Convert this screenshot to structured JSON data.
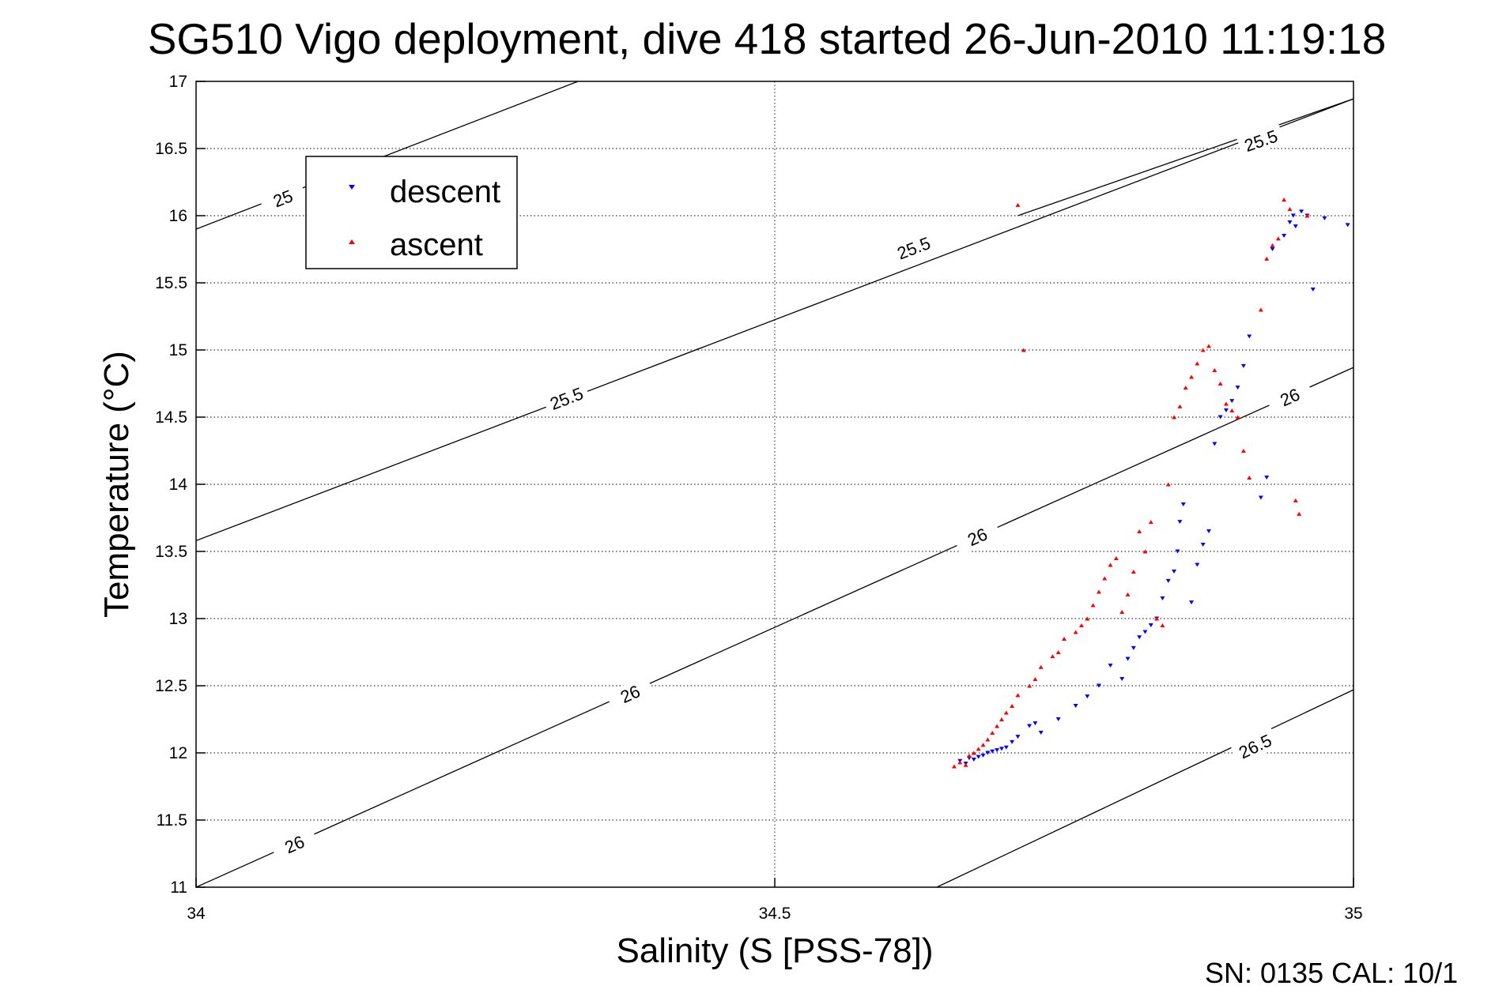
{
  "chart_data": {
    "type": "scatter",
    "title": "SG510 Vigo deployment, dive 418 started 26-Jun-2010 11:19:18",
    "xlabel": "Salinity (S [PSS-78])",
    "ylabel": "Temperature (°C)",
    "xlim": [
      34,
      35
    ],
    "ylim": [
      11,
      17
    ],
    "x_ticks": [
      "34",
      "34.5",
      "35"
    ],
    "y_ticks": [
      "11",
      "11.5",
      "12",
      "12.5",
      "13",
      "13.5",
      "14",
      "14.5",
      "15",
      "15.5",
      "16",
      "16.5",
      "17"
    ],
    "grid": true,
    "legend_position": "top-left",
    "footer_text": "SN: 0135  CAL: 10/1",
    "contours": [
      {
        "label": "25",
        "points": [
          [
            34.0,
            15.9
          ],
          [
            34.33,
            17.0
          ]
        ],
        "labels_at": [
          [
            34.075,
            16.13
          ]
        ]
      },
      {
        "label": "25.5",
        "points": [
          [
            34.0,
            13.58
          ],
          [
            35.0,
            16.87
          ]
        ],
        "labels_at": [
          [
            34.32,
            14.64
          ],
          [
            34.62,
            15.76
          ]
        ]
      },
      {
        "label": "25.5",
        "points": [
          [
            34.71,
            16.0
          ],
          [
            35.0,
            16.87
          ]
        ],
        "labels_at": [
          [
            34.92,
            16.56
          ]
        ]
      },
      {
        "label": "26",
        "points": [
          [
            34.0,
            11.0
          ],
          [
            35.0,
            14.87
          ]
        ],
        "labels_at": [
          [
            34.085,
            11.32
          ],
          [
            34.375,
            12.44
          ],
          [
            34.675,
            13.61
          ],
          [
            34.945,
            14.65
          ]
        ]
      },
      {
        "label": "26.5",
        "points": [
          [
            34.64,
            11.0
          ],
          [
            35.0,
            12.47
          ]
        ],
        "labels_at": [
          [
            34.915,
            12.05
          ]
        ]
      }
    ],
    "series": [
      {
        "name": "descent",
        "color": "#0000ff",
        "marker": "triangle-down",
        "points": [
          [
            34.66,
            11.94
          ],
          [
            34.665,
            11.92
          ],
          [
            34.668,
            11.96
          ],
          [
            34.672,
            11.95
          ],
          [
            34.676,
            11.97
          ],
          [
            34.68,
            11.98
          ],
          [
            34.684,
            12.0
          ],
          [
            34.688,
            12.01
          ],
          [
            34.692,
            12.02
          ],
          [
            34.696,
            12.03
          ],
          [
            34.7,
            12.04
          ],
          [
            34.705,
            12.08
          ],
          [
            34.71,
            12.12
          ],
          [
            34.72,
            12.2
          ],
          [
            34.725,
            12.22
          ],
          [
            34.73,
            12.15
          ],
          [
            34.745,
            12.25
          ],
          [
            34.76,
            12.35
          ],
          [
            34.77,
            12.42
          ],
          [
            34.78,
            12.5
          ],
          [
            34.79,
            12.65
          ],
          [
            34.8,
            12.55
          ],
          [
            34.805,
            12.7
          ],
          [
            34.81,
            12.78
          ],
          [
            34.815,
            12.86
          ],
          [
            34.82,
            12.9
          ],
          [
            34.825,
            12.95
          ],
          [
            34.83,
            13.0
          ],
          [
            34.835,
            13.15
          ],
          [
            34.84,
            13.28
          ],
          [
            34.845,
            13.35
          ],
          [
            34.848,
            13.5
          ],
          [
            34.85,
            13.72
          ],
          [
            34.853,
            13.85
          ],
          [
            34.86,
            13.12
          ],
          [
            34.865,
            13.4
          ],
          [
            34.87,
            13.55
          ],
          [
            34.875,
            13.65
          ],
          [
            34.88,
            14.3
          ],
          [
            34.885,
            14.5
          ],
          [
            34.89,
            14.55
          ],
          [
            34.895,
            14.62
          ],
          [
            34.9,
            14.72
          ],
          [
            34.905,
            14.88
          ],
          [
            34.91,
            15.1
          ],
          [
            34.92,
            13.9
          ],
          [
            34.925,
            14.05
          ],
          [
            34.93,
            15.75
          ],
          [
            34.94,
            15.85
          ],
          [
            34.945,
            15.95
          ],
          [
            34.948,
            16.0
          ],
          [
            34.95,
            15.92
          ],
          [
            34.955,
            16.03
          ],
          [
            34.96,
            16.0
          ],
          [
            34.965,
            15.45
          ],
          [
            34.975,
            15.98
          ],
          [
            34.995,
            15.93
          ]
        ]
      },
      {
        "name": "ascent",
        "color": "#ff0000",
        "marker": "triangle-up",
        "points": [
          [
            34.655,
            11.9
          ],
          [
            34.66,
            11.93
          ],
          [
            34.665,
            11.91
          ],
          [
            34.668,
            11.98
          ],
          [
            34.672,
            12.0
          ],
          [
            34.676,
            12.03
          ],
          [
            34.68,
            12.06
          ],
          [
            34.684,
            12.1
          ],
          [
            34.688,
            12.15
          ],
          [
            34.692,
            12.2
          ],
          [
            34.696,
            12.25
          ],
          [
            34.7,
            12.3
          ],
          [
            34.705,
            12.35
          ],
          [
            34.71,
            12.43
          ],
          [
            34.72,
            12.5
          ],
          [
            34.725,
            12.55
          ],
          [
            34.73,
            12.64
          ],
          [
            34.74,
            12.72
          ],
          [
            34.745,
            12.75
          ],
          [
            34.75,
            12.85
          ],
          [
            34.76,
            12.9
          ],
          [
            34.765,
            12.95
          ],
          [
            34.77,
            13.0
          ],
          [
            34.775,
            13.1
          ],
          [
            34.78,
            13.2
          ],
          [
            34.785,
            13.3
          ],
          [
            34.79,
            13.4
          ],
          [
            34.795,
            13.45
          ],
          [
            34.8,
            13.05
          ],
          [
            34.805,
            13.18
          ],
          [
            34.81,
            13.35
          ],
          [
            34.815,
            13.65
          ],
          [
            34.82,
            13.5
          ],
          [
            34.825,
            13.72
          ],
          [
            34.83,
            13.0
          ],
          [
            34.835,
            12.95
          ],
          [
            34.84,
            14.0
          ],
          [
            34.845,
            14.5
          ],
          [
            34.85,
            14.58
          ],
          [
            34.855,
            14.72
          ],
          [
            34.86,
            14.8
          ],
          [
            34.865,
            14.9
          ],
          [
            34.87,
            15.0
          ],
          [
            34.875,
            15.03
          ],
          [
            34.88,
            14.85
          ],
          [
            34.885,
            14.75
          ],
          [
            34.89,
            14.6
          ],
          [
            34.895,
            14.55
          ],
          [
            34.9,
            14.5
          ],
          [
            34.905,
            14.25
          ],
          [
            34.91,
            14.05
          ],
          [
            34.92,
            15.3
          ],
          [
            34.925,
            15.68
          ],
          [
            34.93,
            15.78
          ],
          [
            34.935,
            15.83
          ],
          [
            34.94,
            16.12
          ],
          [
            34.945,
            16.05
          ],
          [
            34.95,
            13.88
          ],
          [
            34.953,
            13.78
          ],
          [
            34.96,
            16.0
          ],
          [
            34.71,
            16.08
          ],
          [
            34.715,
            15.0
          ]
        ]
      }
    ]
  }
}
